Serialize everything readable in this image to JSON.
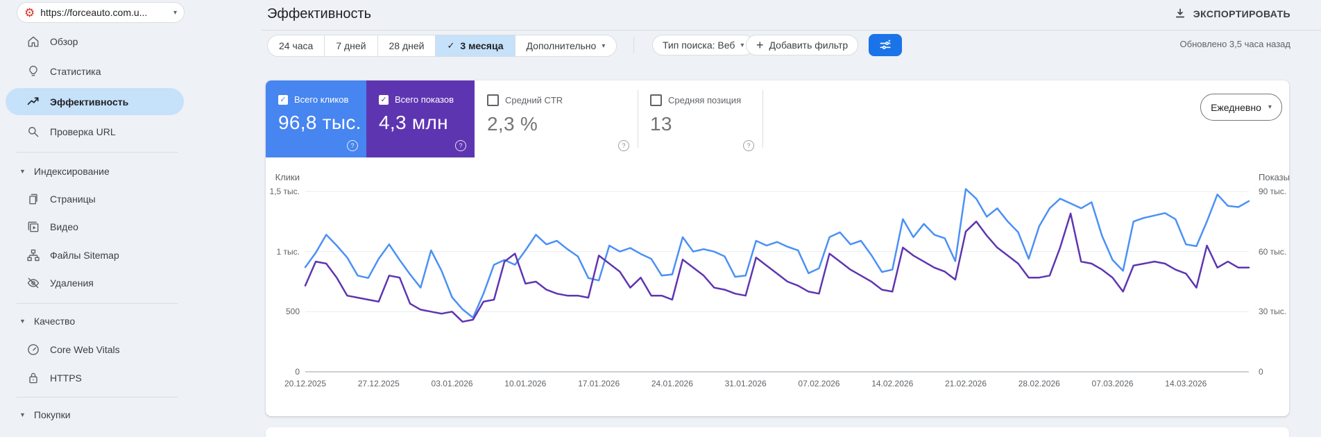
{
  "property": {
    "url": "https://forceauto.com.u...",
    "favicon": "red-gear-logo"
  },
  "sidebar": {
    "overview": "Обзор",
    "insights": "Статистика",
    "performance": "Эффективность",
    "url_inspection": "Проверка URL",
    "indexing": "Индексирование",
    "pages": "Страницы",
    "video": "Видео",
    "sitemaps": "Файлы Sitemap",
    "removals": "Удаления",
    "quality": "Качество",
    "core_web_vitals": "Core Web Vitals",
    "https": "HTTPS",
    "shopping": "Покупки"
  },
  "header": {
    "title": "Эффективность",
    "export_label": "ЭКСПОРТИРОВАТЬ",
    "updated": "Обновлено 3,5 часа назад"
  },
  "toolbar": {
    "ranges": [
      "24 часа",
      "7 дней",
      "28 дней",
      "3 месяца",
      "Дополнительно"
    ],
    "selected_range": "3 месяца",
    "search_type": "Тип поиска: Веб",
    "add_filter": "Добавить фильтр",
    "filter_button_color": "#1a73e8"
  },
  "metrics": [
    {
      "label": "Всего кликов",
      "value": "96,8 тыс.",
      "checked": true,
      "color": "#4785f0"
    },
    {
      "label": "Всего показов",
      "value": "4,3 млн",
      "checked": true,
      "color": "#5e35b1"
    },
    {
      "label": "Средний CTR",
      "value": "2,3 %",
      "checked": false
    },
    {
      "label": "Средняя позиция",
      "value": "13",
      "checked": false
    }
  ],
  "granularity": "Ежедневно",
  "chart_data": {
    "type": "line",
    "x_frequency": "daily",
    "x_tick_labels": [
      "20.12.2025",
      "27.12.2025",
      "03.01.2026",
      "10.01.2026",
      "17.01.2026",
      "24.01.2026",
      "31.01.2026",
      "07.02.2026",
      "14.02.2026",
      "21.02.2026",
      "28.02.2026",
      "07.03.2026",
      "14.03.2026"
    ],
    "left_axis": {
      "label": "Клики",
      "ticks": [
        "1,5 тыс.",
        "1 тыс.",
        "500",
        "0"
      ],
      "max": 1500
    },
    "right_axis": {
      "label": "Показы",
      "ticks": [
        "90 тыс.",
        "60 тыс.",
        "30 тыс.",
        "0"
      ],
      "max": 90,
      "unit": "тыс."
    },
    "grid": "horizontal",
    "legend_position": "none",
    "series": [
      {
        "key": "clicks",
        "name": "Всего кликов",
        "axis": "left",
        "color": "#4a90f6",
        "values": [
          870,
          990,
          1140,
          1050,
          950,
          800,
          780,
          940,
          1060,
          930,
          810,
          700,
          1010,
          840,
          620,
          520,
          450,
          650,
          890,
          930,
          890,
          1010,
          1140,
          1060,
          1090,
          1020,
          960,
          780,
          760,
          1050,
          1000,
          1030,
          980,
          940,
          800,
          810,
          1120,
          1000,
          1020,
          1000,
          960,
          790,
          800,
          1090,
          1050,
          1080,
          1040,
          1010,
          820,
          860,
          1120,
          1160,
          1060,
          1090,
          970,
          830,
          850,
          1270,
          1120,
          1230,
          1140,
          1110,
          920,
          1520,
          1440,
          1290,
          1360,
          1250,
          1160,
          940,
          1210,
          1360,
          1440,
          1400,
          1360,
          1410,
          1130,
          930,
          840,
          1250,
          1280,
          1300,
          1320,
          1270,
          1060,
          1045,
          1250,
          1475,
          1380,
          1370,
          1420
        ]
      },
      {
        "key": "impressions",
        "name": "Всего показов",
        "axis": "right",
        "color": "#5e35b1",
        "unit": "тыс.",
        "values": [
          43,
          55,
          54,
          47,
          38,
          37,
          36,
          35,
          48,
          47,
          34,
          31,
          30,
          29,
          30,
          25,
          26,
          35,
          36,
          55,
          59,
          44,
          45,
          41,
          39,
          38,
          38,
          37,
          58,
          54,
          50,
          42,
          47,
          38,
          38,
          36,
          56,
          52,
          48,
          42,
          41,
          39,
          38,
          57,
          53,
          49,
          45,
          43,
          40,
          39,
          59,
          55,
          51,
          48,
          45,
          41,
          40,
          62,
          58,
          55,
          52,
          50,
          46,
          70,
          75,
          68,
          62,
          58,
          54,
          47,
          47,
          48,
          62,
          79,
          55,
          54,
          51,
          47,
          40,
          53,
          54,
          55,
          54,
          51,
          49,
          42,
          63,
          52,
          55,
          52,
          52
        ]
      }
    ]
  }
}
